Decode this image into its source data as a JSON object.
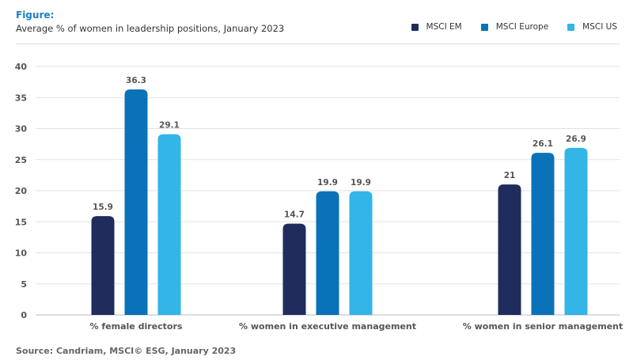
{
  "header": {
    "figure_label": "Figure:",
    "subtitle": "Average % of women in leadership positions, January 2023"
  },
  "source": "Source: Candriam, MSCI© ESG, January 2023",
  "chart_data": {
    "type": "bar",
    "title": "Average % of women in leadership positions, January 2023",
    "xlabel": "",
    "ylabel": "",
    "ylim": [
      0,
      40
    ],
    "yticks": [
      0,
      5,
      10,
      15,
      20,
      25,
      30,
      35,
      40
    ],
    "grid": true,
    "legend_position": "top-right",
    "categories": [
      "% female directors",
      "% women in executive management",
      "% women in senior management"
    ],
    "series": [
      {
        "name": "MSCI EM",
        "color": "#1f2c5c",
        "values": [
          15.9,
          14.7,
          21
        ],
        "labels": [
          "15.9",
          "14.7",
          "21"
        ]
      },
      {
        "name": "MSCI Europe",
        "color": "#0a72b8",
        "values": [
          36.3,
          19.9,
          26.1
        ],
        "labels": [
          "36.3",
          "19.9",
          "26.1"
        ]
      },
      {
        "name": "MSCI US",
        "color": "#33b5e8",
        "values": [
          29.1,
          19.9,
          26.9
        ],
        "labels": [
          "29.1",
          "19.9",
          "26.9"
        ]
      }
    ]
  }
}
